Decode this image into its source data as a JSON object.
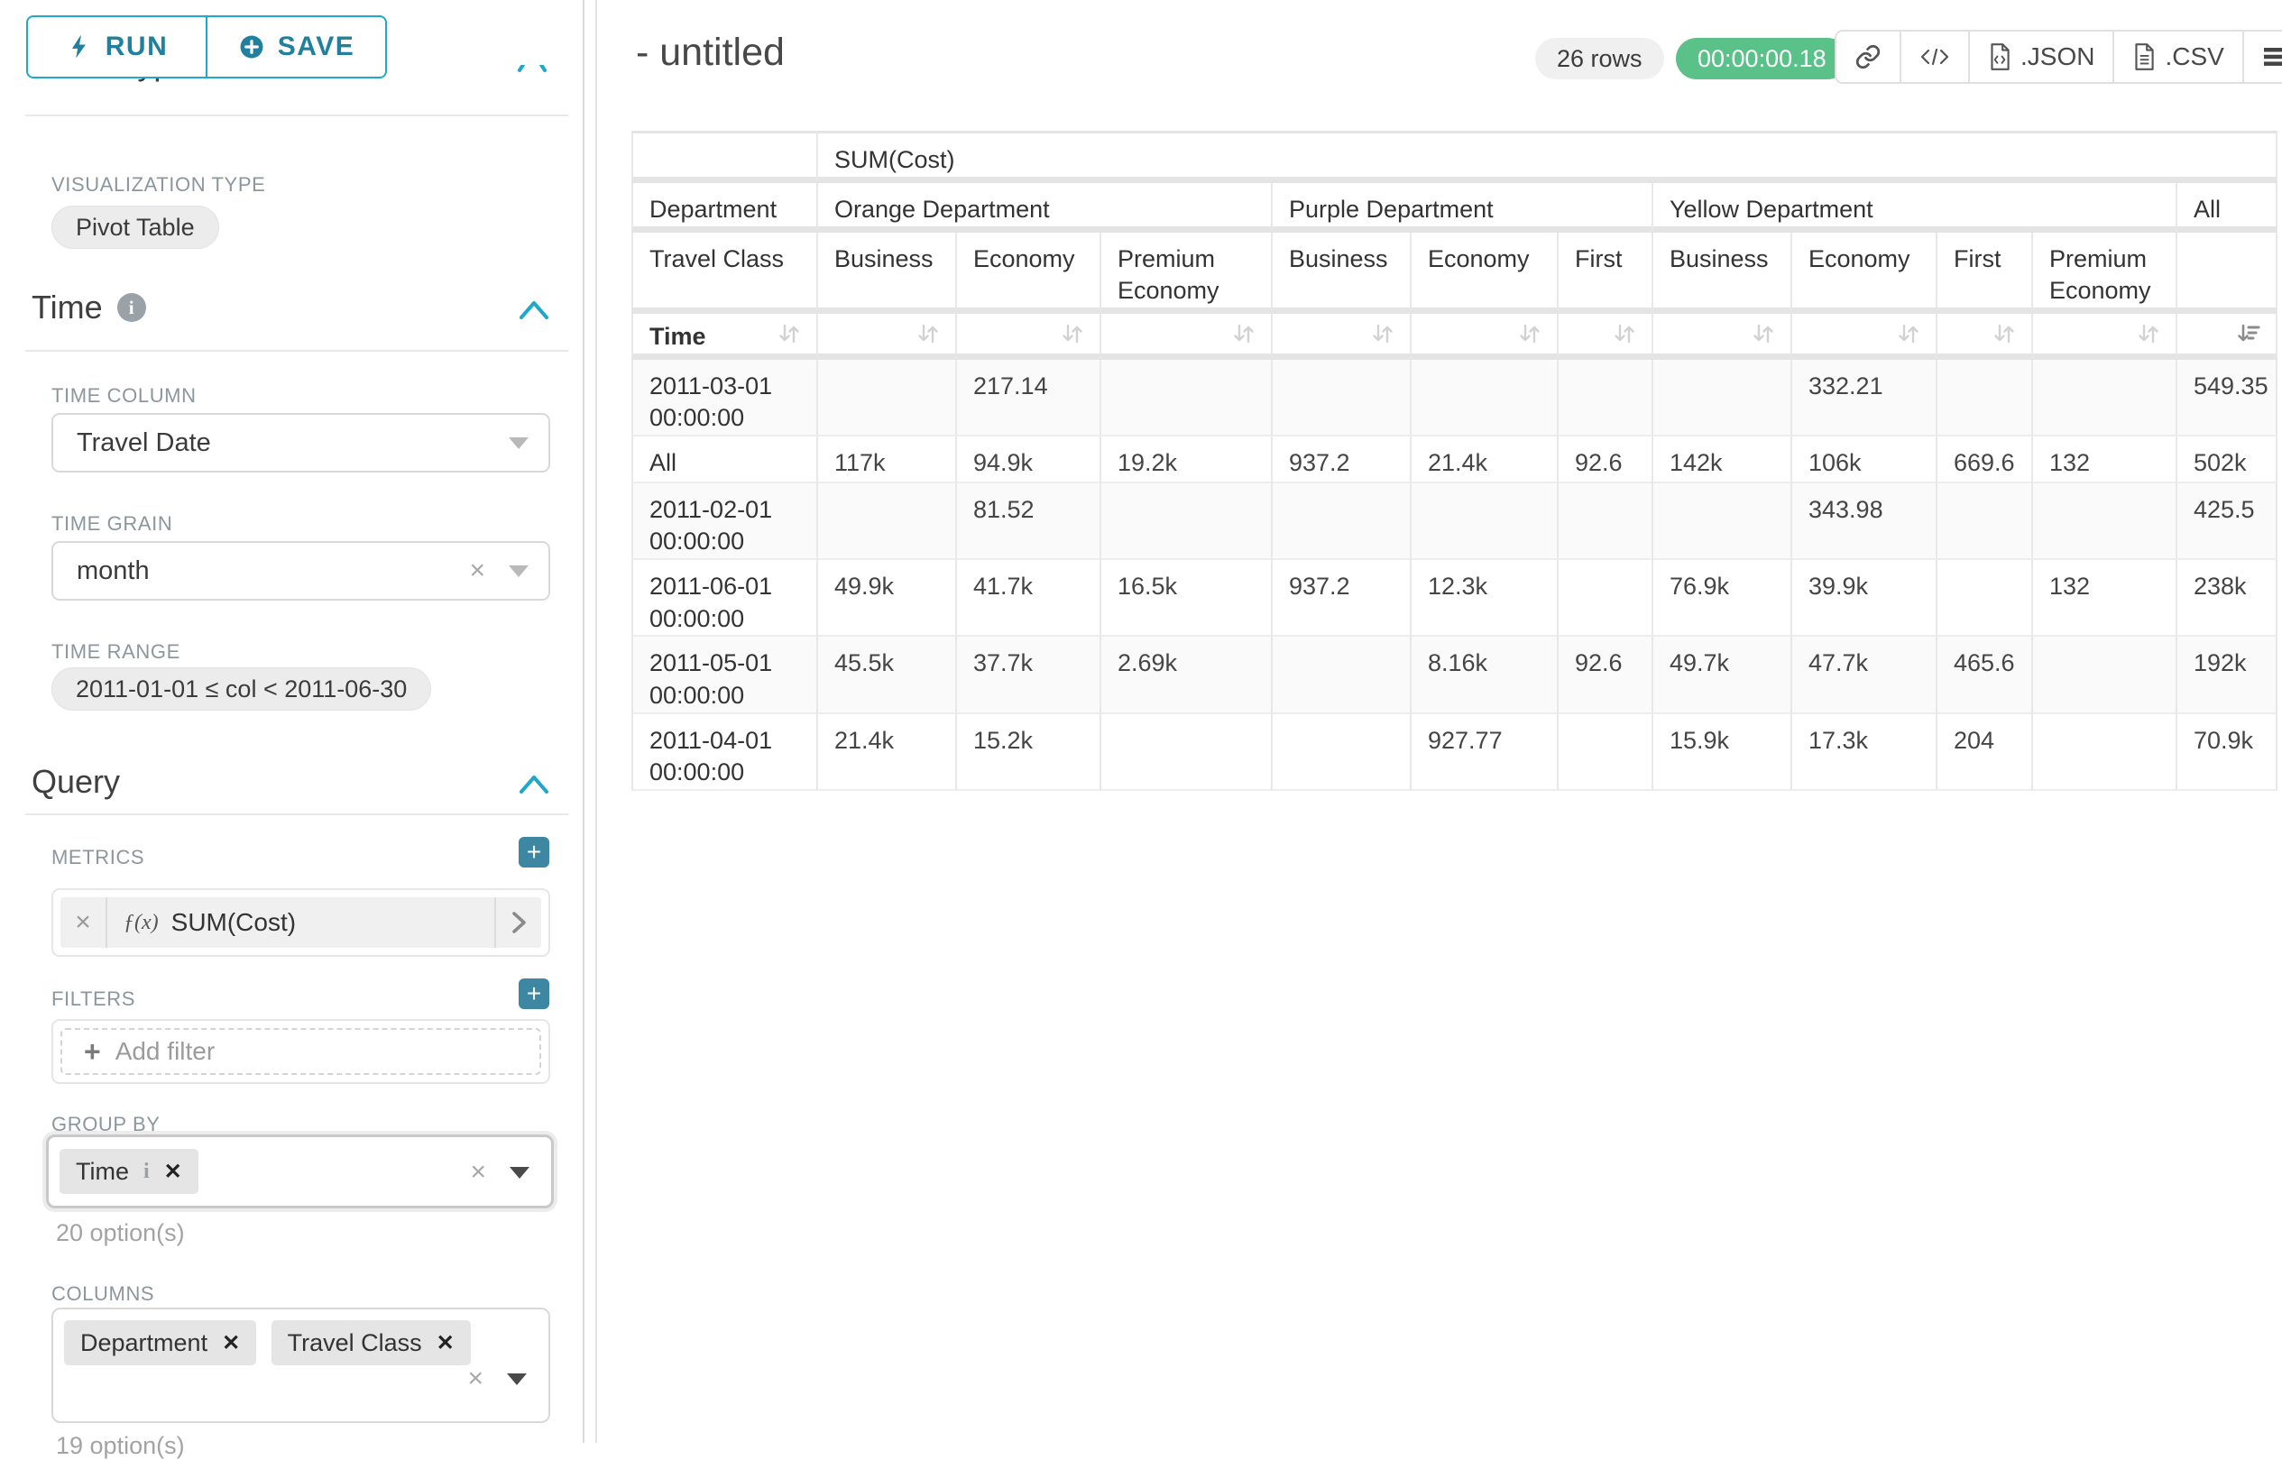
{
  "colors": {
    "accent": "#1fa8c9",
    "accent_text": "#20809e",
    "timer_green": "#5ac189",
    "add_button": "#3d87a3"
  },
  "icons": {
    "run": "bolt-icon",
    "save": "plus-circle-icon",
    "section_info": "info-circle-icon",
    "section_collapse": "chevron-up-icon",
    "metric": "function-fx-icon",
    "metric_open": "chevron-right-icon",
    "share": "link-icon",
    "embed": "code-icon",
    "json_file": "file-code-icon",
    "csv_file": "file-text-icon",
    "menu": "hamburger-icon",
    "sort": "sort-arrows-icon",
    "sort_active": "sort-descending-icon"
  },
  "sidebar": {
    "run_label": "RUN",
    "save_label": "SAVE",
    "chart_type_title": "Chart Type",
    "visualization": {
      "label": "VISUALIZATION TYPE",
      "value": "Pivot Table"
    },
    "time": {
      "title": "Time",
      "time_column": {
        "label": "TIME COLUMN",
        "value": "Travel Date"
      },
      "time_grain": {
        "label": "TIME GRAIN",
        "value": "month"
      },
      "time_range": {
        "label": "TIME RANGE",
        "value": "2011-01-01 ≤ col < 2011-06-30"
      }
    },
    "query": {
      "title": "Query",
      "metrics": {
        "label": "METRICS",
        "fx": "ƒ(x)",
        "items": [
          {
            "name": "SUM(Cost)"
          }
        ]
      },
      "filters": {
        "label": "FILTERS",
        "placeholder": "Add filter"
      },
      "group_by": {
        "label": "GROUP BY",
        "chips": [
          {
            "name": "Time"
          }
        ],
        "hint": "20 option(s)"
      },
      "columns": {
        "label": "COLUMNS",
        "chips": [
          {
            "name": "Department"
          },
          {
            "name": "Travel Class"
          }
        ],
        "hint": "19 option(s)"
      }
    }
  },
  "header": {
    "title": "- untitled",
    "row_count": "26 rows",
    "timer": "00:00:00.18",
    "export_json_label": ".JSON",
    "export_csv_label": ".CSV"
  },
  "pivot": {
    "metric_header": "SUM(Cost)",
    "department_label": "Department",
    "travel_class_label": "Travel Class",
    "time_label": "Time",
    "all_label": "All",
    "groups": [
      {
        "name": "Orange Department",
        "classes": [
          "Business",
          "Economy",
          "Premium Economy"
        ]
      },
      {
        "name": "Purple Department",
        "classes": [
          "Business",
          "Economy",
          "First"
        ]
      },
      {
        "name": "Yellow Department",
        "classes": [
          "Business",
          "Economy",
          "First",
          "Premium Economy"
        ]
      }
    ],
    "rows": [
      {
        "label": "2011-03-01 00:00:00",
        "values": [
          "",
          "217.14",
          "",
          "",
          "",
          "",
          "",
          "332.21",
          "",
          "",
          "549.35"
        ]
      },
      {
        "label": "All",
        "values": [
          "117k",
          "94.9k",
          "19.2k",
          "937.2",
          "21.4k",
          "92.6",
          "142k",
          "106k",
          "669.6",
          "132",
          "502k"
        ]
      },
      {
        "label": "2011-02-01 00:00:00",
        "values": [
          "",
          "81.52",
          "",
          "",
          "",
          "",
          "",
          "343.98",
          "",
          "",
          "425.5"
        ]
      },
      {
        "label": "2011-06-01 00:00:00",
        "values": [
          "49.9k",
          "41.7k",
          "16.5k",
          "937.2",
          "12.3k",
          "",
          "76.9k",
          "39.9k",
          "",
          "132",
          "238k"
        ]
      },
      {
        "label": "2011-05-01 00:00:00",
        "values": [
          "45.5k",
          "37.7k",
          "2.69k",
          "",
          "8.16k",
          "92.6",
          "49.7k",
          "47.7k",
          "465.6",
          "",
          "192k"
        ]
      },
      {
        "label": "2011-04-01 00:00:00",
        "values": [
          "21.4k",
          "15.2k",
          "",
          "",
          "927.77",
          "",
          "15.9k",
          "17.3k",
          "204",
          "",
          "70.9k"
        ]
      }
    ]
  }
}
